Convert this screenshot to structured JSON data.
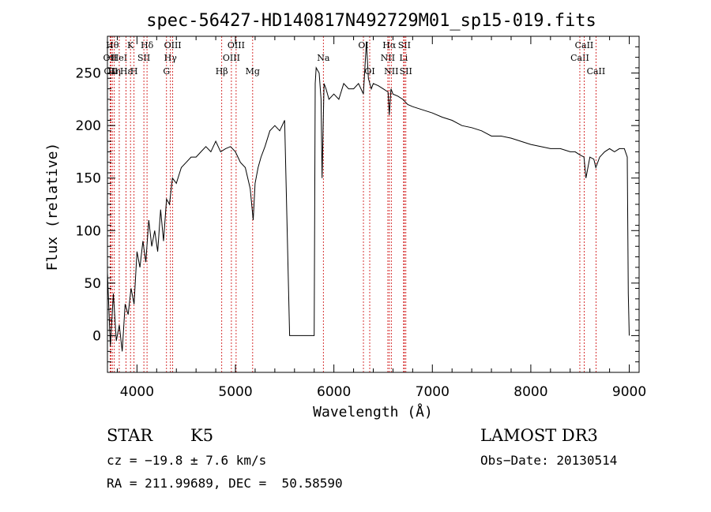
{
  "chart_data": {
    "type": "line",
    "title": "spec-56427-HD140817N492729M01_sp15-019.fits",
    "xlabel": "Wavelength (Å)",
    "ylabel": "Flux (relative)",
    "xlim": [
      3700,
      9100
    ],
    "ylim": [
      -35,
      285
    ],
    "x_ticks": [
      4000,
      5000,
      6000,
      7000,
      8000,
      9000
    ],
    "x_tick_labels": [
      "4000",
      "5000",
      "6000",
      "7000",
      "8000",
      "9000"
    ],
    "y_ticks": [
      0,
      50,
      100,
      150,
      200,
      250
    ],
    "y_tick_labels": [
      "0",
      "50",
      "100",
      "150",
      "200",
      "250"
    ],
    "grid": false,
    "series": [
      {
        "x": [
          3700,
          3730,
          3760,
          3790,
          3820,
          3850,
          3880,
          3910,
          3940,
          3970,
          4000,
          4030,
          4060,
          4090,
          4120,
          4150,
          4180,
          4210,
          4240,
          4270,
          4300,
          4330,
          4360,
          4400,
          4450,
          4500,
          4550,
          4600,
          4650,
          4700,
          4750,
          4800,
          4850,
          4900,
          4950,
          5000,
          5050,
          5100,
          5150,
          5180,
          5200,
          5230,
          5260,
          5300,
          5350,
          5400,
          5450,
          5500,
          5550,
          5560,
          5600,
          5700,
          5800,
          5810,
          5820,
          5850,
          5870,
          5880,
          5900,
          5920,
          5950,
          6000,
          6050,
          6100,
          6150,
          6200,
          6250,
          6300,
          6330,
          6350,
          6380,
          6400,
          6450,
          6500,
          6550,
          6563,
          6580,
          6600,
          6650,
          6700,
          6750,
          6800,
          6900,
          7000,
          7100,
          7200,
          7300,
          7400,
          7500,
          7600,
          7700,
          7800,
          7900,
          8000,
          8100,
          8200,
          8300,
          8400,
          8450,
          8500,
          8540,
          8560,
          8600,
          8640,
          8660,
          8700,
          8750,
          8800,
          8850,
          8900,
          8950,
          8980,
          8990,
          9000
        ],
        "y": [
          60,
          -10,
          40,
          -5,
          10,
          -15,
          30,
          20,
          45,
          30,
          80,
          65,
          90,
          70,
          110,
          85,
          100,
          80,
          120,
          90,
          130,
          125,
          150,
          145,
          160,
          165,
          170,
          170,
          175,
          180,
          175,
          185,
          175,
          178,
          180,
          175,
          165,
          160,
          140,
          110,
          145,
          160,
          170,
          180,
          195,
          200,
          195,
          205,
          0,
          0,
          0,
          0,
          0,
          240,
          255,
          250,
          225,
          150,
          240,
          235,
          225,
          230,
          225,
          240,
          235,
          235,
          240,
          230,
          280,
          245,
          235,
          240,
          238,
          235,
          232,
          210,
          235,
          230,
          228,
          225,
          220,
          218,
          215,
          212,
          208,
          205,
          200,
          198,
          195,
          190,
          190,
          188,
          185,
          182,
          180,
          178,
          178,
          175,
          175,
          172,
          170,
          150,
          170,
          168,
          160,
          170,
          175,
          178,
          175,
          178,
          178,
          170,
          40,
          0
        ]
      }
    ],
    "line_markers": [
      {
        "wl": 3750,
        "label": "Hθ",
        "row": 1
      },
      {
        "wl": 3727,
        "label": "OII",
        "row": 2
      },
      {
        "wl": 3770,
        "label": "Hη",
        "row": 3
      },
      {
        "wl": 3735,
        "label": "OII",
        "row": 3
      },
      {
        "wl": 3820,
        "label": "HeI",
        "row": 2
      },
      {
        "wl": 3889,
        "label": "Hε",
        "row": 3
      },
      {
        "wl": 3934,
        "label": "K",
        "row": 1
      },
      {
        "wl": 3970,
        "label": "H",
        "row": 3
      },
      {
        "wl": 4070,
        "label": "SII",
        "row": 2
      },
      {
        "wl": 4102,
        "label": "Hδ",
        "row": 1
      },
      {
        "wl": 4300,
        "label": "G",
        "row": 3
      },
      {
        "wl": 4340,
        "label": "Hγ",
        "row": 2
      },
      {
        "wl": 4363,
        "label": "OIII",
        "row": 1
      },
      {
        "wl": 4861,
        "label": "Hβ",
        "row": 3
      },
      {
        "wl": 4959,
        "label": "OIII",
        "row": 2
      },
      {
        "wl": 5007,
        "label": "OIII",
        "row": 1
      },
      {
        "wl": 5175,
        "label": "Mg",
        "row": 3
      },
      {
        "wl": 5893,
        "label": "Na",
        "row": 2
      },
      {
        "wl": 6300,
        "label": "OI",
        "row": 1
      },
      {
        "wl": 6364,
        "label": "OI",
        "row": 3
      },
      {
        "wl": 6548,
        "label": "NII",
        "row": 2
      },
      {
        "wl": 6563,
        "label": "Hα",
        "row": 1
      },
      {
        "wl": 6583,
        "label": "NII",
        "row": 3
      },
      {
        "wl": 6708,
        "label": "Li",
        "row": 2
      },
      {
        "wl": 6716,
        "label": "SII",
        "row": 1
      },
      {
        "wl": 6731,
        "label": "SII",
        "row": 3
      },
      {
        "wl": 8498,
        "label": "CaII",
        "row": 2
      },
      {
        "wl": 8542,
        "label": "CaII",
        "row": 1
      },
      {
        "wl": 8662,
        "label": "CaII",
        "row": 3
      }
    ],
    "marker_color": "#cc0000",
    "line_color": "#000000"
  },
  "footer": {
    "class_label": "STAR",
    "subclass": "K5",
    "survey": "LAMOST DR3",
    "cz": "cz = −19.8 ± 7.6 km/s",
    "obs_date": "Obs−Date: 20130514",
    "coords": "RA = 211.99689, DEC =  50.58590"
  }
}
